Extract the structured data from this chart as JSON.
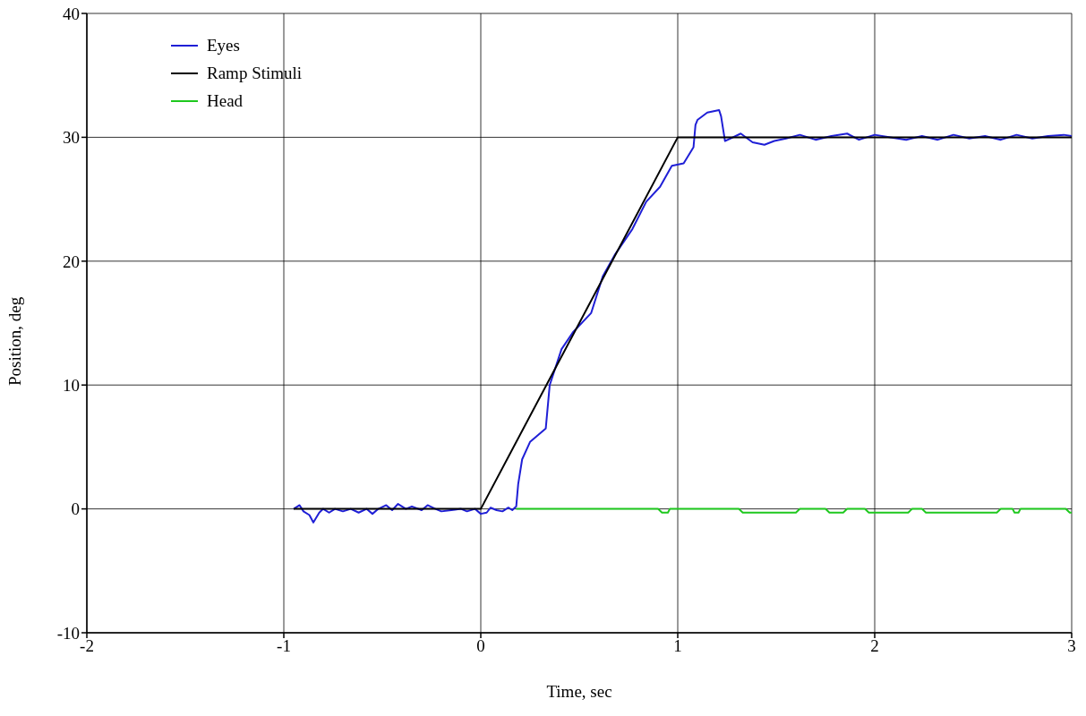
{
  "chart_data": {
    "type": "line",
    "xlabel": "Time, sec",
    "ylabel": "Position, deg",
    "xlim": [
      -2,
      3
    ],
    "xticks": [
      -2,
      -1,
      0,
      1,
      2,
      3
    ],
    "ylim": [
      -10,
      40
    ],
    "yticks": [
      -10,
      0,
      10,
      20,
      30,
      40
    ],
    "grid": true,
    "legend": "top left",
    "marker": "none",
    "line_style": "solid",
    "series": [
      {
        "name": "Eyes",
        "color": "#1f1fd6",
        "x": [
          -0.95,
          -0.92,
          -0.9,
          -0.87,
          -0.85,
          -0.82,
          -0.8,
          -0.77,
          -0.74,
          -0.7,
          -0.66,
          -0.62,
          -0.58,
          -0.55,
          -0.52,
          -0.48,
          -0.45,
          -0.42,
          -0.38,
          -0.35,
          -0.3,
          -0.27,
          -0.23,
          -0.2,
          -0.15,
          -0.1,
          -0.07,
          -0.03,
          0,
          0.03,
          0.05,
          0.08,
          0.11,
          0.14,
          0.16,
          0.18,
          0.19,
          0.21,
          0.25,
          0.33,
          0.35,
          0.41,
          0.47,
          0.56,
          0.62,
          0.68,
          0.77,
          0.84,
          0.91,
          0.97,
          1.03,
          1.08,
          1.09,
          1.1,
          1.15,
          1.21,
          1.22,
          1.24,
          1.32,
          1.38,
          1.44,
          1.49,
          1.55,
          1.62,
          1.7,
          1.78,
          1.86,
          1.92,
          2.0,
          2.08,
          2.16,
          2.24,
          2.32,
          2.4,
          2.48,
          2.56,
          2.64,
          2.72,
          2.8,
          2.88,
          2.96,
          3.0
        ],
        "values": [
          0,
          0.3,
          -0.2,
          -0.5,
          -1.1,
          -0.3,
          0,
          -0.3,
          0,
          -0.2,
          0,
          -0.3,
          0,
          -0.4,
          0,
          0.3,
          -0.1,
          0.4,
          0,
          0.2,
          -0.1,
          0.3,
          0,
          -0.2,
          -0.1,
          0,
          -0.2,
          0,
          -0.4,
          -0.3,
          0.1,
          -0.1,
          -0.2,
          0.1,
          -0.1,
          0.2,
          2.0,
          4.0,
          5.4,
          6.5,
          10.0,
          12.9,
          14.3,
          15.8,
          18.8,
          20.5,
          22.6,
          24.8,
          26.0,
          27.7,
          27.9,
          29.2,
          31.0,
          31.4,
          32.0,
          32.2,
          31.7,
          29.7,
          30.3,
          29.6,
          29.4,
          29.7,
          29.9,
          30.2,
          29.8,
          30.1,
          30.3,
          29.8,
          30.2,
          30.0,
          29.8,
          30.1,
          29.8,
          30.2,
          29.9,
          30.1,
          29.8,
          30.2,
          29.9,
          30.1,
          30.2,
          30.1
        ]
      },
      {
        "name": "Ramp Stimuli",
        "color": "#000000",
        "x": [
          -0.95,
          0,
          1,
          3
        ],
        "values": [
          0,
          0,
          30,
          30
        ]
      },
      {
        "name": "Head",
        "color": "#1ec81e",
        "x": [
          0.18,
          0.9,
          0.92,
          0.95,
          0.96,
          1.31,
          1.33,
          1.6,
          1.62,
          1.75,
          1.77,
          1.84,
          1.86,
          1.95,
          1.97,
          2.17,
          2.19,
          2.24,
          2.26,
          2.62,
          2.64,
          2.7,
          2.71,
          2.73,
          2.74,
          2.97,
          2.99,
          3.0
        ],
        "values": [
          0,
          0,
          -0.3,
          -0.3,
          0,
          0,
          -0.3,
          -0.3,
          0,
          0,
          -0.3,
          -0.3,
          0,
          0,
          -0.3,
          -0.3,
          0,
          0,
          -0.3,
          -0.3,
          0,
          0,
          -0.3,
          -0.3,
          0,
          0,
          -0.3,
          -0.3
        ]
      }
    ]
  }
}
